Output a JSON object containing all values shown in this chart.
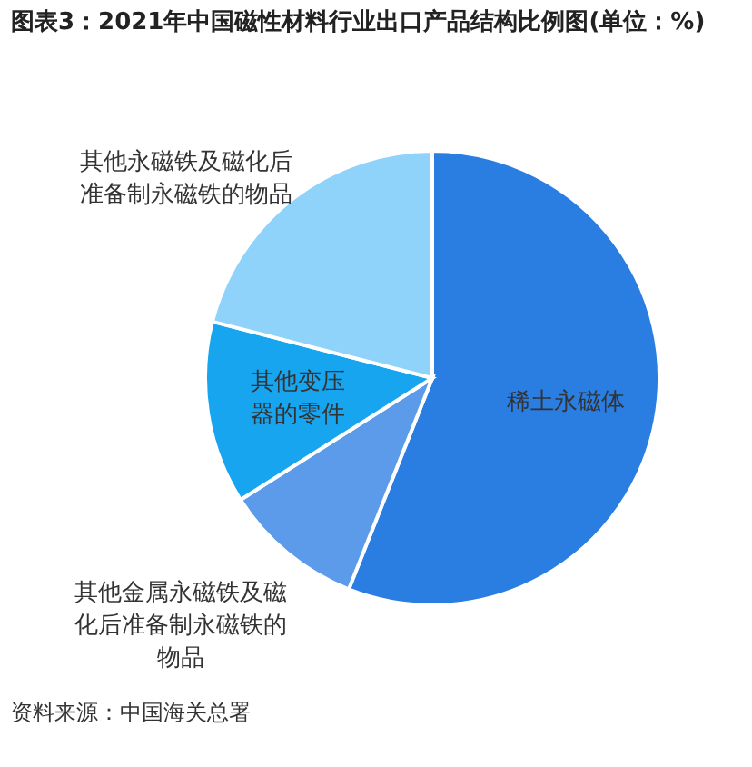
{
  "chart_data": {
    "type": "pie",
    "title": "图表3：2021年中国磁性材料行业出口产品结构比例图(单位：%)",
    "categories": [
      "稀土永磁体",
      "其他金属永磁铁及磁化后准备制永磁铁的物品",
      "其他变压器的零件",
      "其他永磁铁及磁化后准备制永磁铁的物品"
    ],
    "values": [
      56,
      10,
      13,
      21
    ],
    "colors": [
      "#2a7de1",
      "#5b9bea",
      "#18a5f0",
      "#8fd3fb"
    ],
    "annotations": [
      "资料来源：中国海关总署"
    ]
  }
}
